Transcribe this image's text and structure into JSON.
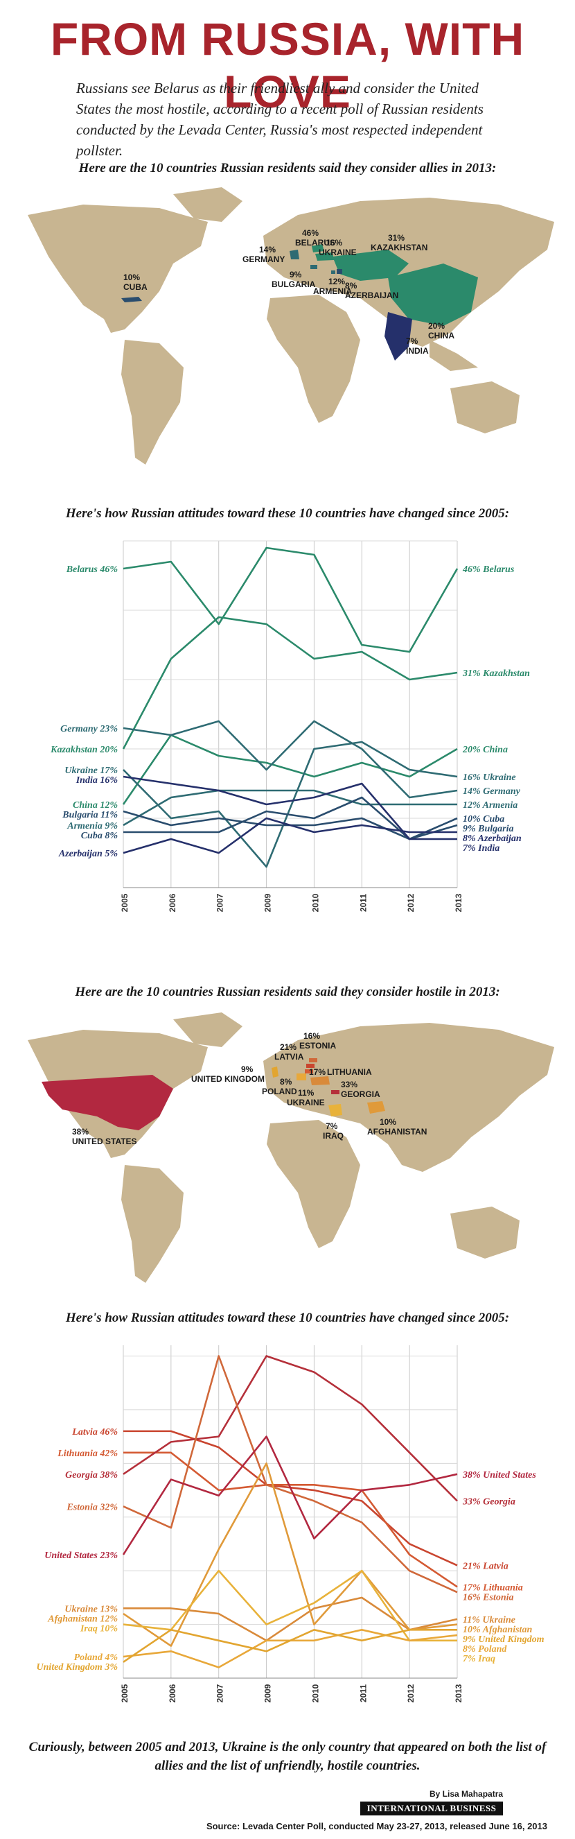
{
  "title": "FROM RUSSIA, WITH LOVE",
  "intro": "Russians see Belarus as their friendliest ally and consider the United States the most hostile, according to a recent poll of Russian residents conducted by the Levada Center, Russia's most respected independent pollster.",
  "allies_map": {
    "heading": "Here are the 10 countries Russian residents said they consider allies in 2013:",
    "labels": [
      {
        "pct": "46%",
        "name": "BELARUS"
      },
      {
        "pct": "31%",
        "name": "KAZAKHSTAN"
      },
      {
        "pct": "16%",
        "name": "UKRAINE"
      },
      {
        "pct": "14%",
        "name": "GERMANY"
      },
      {
        "pct": "9%",
        "name": "BULGARIA"
      },
      {
        "pct": "12%",
        "name": "ARMENIA"
      },
      {
        "pct": "8%",
        "name": "AZERBAIJAN"
      },
      {
        "pct": "10%",
        "name": "CUBA"
      },
      {
        "pct": "20%",
        "name": "CHINA"
      },
      {
        "pct": "7%",
        "name": "INDIA"
      }
    ]
  },
  "hostile_map": {
    "heading": "Here are the 10 countries Russian residents said they consider hostile in 2013:",
    "labels": [
      {
        "pct": "38%",
        "name": "UNITED STATES"
      },
      {
        "pct": "21%",
        "name": "LATVIA"
      },
      {
        "pct": "16%",
        "name": "ESTONIA"
      },
      {
        "pct": "17%",
        "name": "LITHUANIA"
      },
      {
        "pct": "9%",
        "name": "UNITED KINGDOM"
      },
      {
        "pct": "8%",
        "name": "POLAND"
      },
      {
        "pct": "11%",
        "name": "UKRAINE"
      },
      {
        "pct": "33%",
        "name": "GEORGIA"
      },
      {
        "pct": "7%",
        "name": "IRAQ"
      },
      {
        "pct": "10%",
        "name": "AFGHANISTAN"
      }
    ]
  },
  "chart_data": [
    {
      "type": "line",
      "title": "Here's how Russian attitudes toward these 10 countries have changed since 2005:",
      "x": [
        "2005",
        "2006",
        "2007",
        "2009",
        "2010",
        "2011",
        "2012",
        "2013"
      ],
      "ylim": [
        0,
        50
      ],
      "series": [
        {
          "name": "Belarus",
          "color": "#2b8a6b",
          "values": [
            46,
            47,
            38,
            49,
            48,
            35,
            34,
            46
          ],
          "left_label": "Belarus 46%",
          "right_label": "46% Belarus"
        },
        {
          "name": "Kazakhstan",
          "color": "#2b8a6b",
          "values": [
            20,
            33,
            39,
            38,
            33,
            34,
            30,
            31
          ],
          "left_label": "Kazakhstan 20%",
          "right_label": "31% Kazakhstan"
        },
        {
          "name": "China",
          "color": "#2b8a6b",
          "values": [
            12,
            22,
            19,
            18,
            16,
            18,
            16,
            20
          ],
          "left_label": "China 12%",
          "right_label": "20% China"
        },
        {
          "name": "Germany",
          "color": "#2e6b73",
          "values": [
            23,
            22,
            24,
            17,
            24,
            20,
            13,
            14
          ],
          "left_label": "Germany 23%",
          "right_label": "14% Germany"
        },
        {
          "name": "Ukraine",
          "color": "#2e6b73",
          "values": [
            17,
            10,
            11,
            3,
            20,
            21,
            17,
            16
          ],
          "left_label": "Ukraine 17%",
          "right_label": "16% Ukraine"
        },
        {
          "name": "Armenia",
          "color": "#2e6b73",
          "values": [
            9,
            13,
            14,
            14,
            14,
            12,
            12,
            12
          ],
          "left_label": "Armenia 9%",
          "right_label": "12% Armenia"
        },
        {
          "name": "Bulgaria",
          "color": "#2a4d6e",
          "values": [
            11,
            9,
            10,
            9,
            9,
            10,
            7,
            9
          ],
          "left_label": "Bulgaria 11%",
          "right_label": "9% Bulgaria"
        },
        {
          "name": "Cuba",
          "color": "#2a4d6e",
          "values": [
            8,
            8,
            8,
            11,
            10,
            13,
            7,
            10
          ],
          "left_label": "Cuba 8%",
          "right_label": "10% Cuba"
        },
        {
          "name": "India",
          "color": "#25306b",
          "values": [
            16,
            15,
            14,
            12,
            13,
            15,
            7,
            7
          ],
          "left_label": "India 16%",
          "right_label": "7% India"
        },
        {
          "name": "Azerbaijan",
          "color": "#25306b",
          "values": [
            5,
            7,
            5,
            10,
            8,
            9,
            8,
            8
          ],
          "left_label": "Azerbaijan 5%",
          "right_label": "8% Azerbaijan"
        }
      ]
    },
    {
      "type": "line",
      "title": "Here's how Russian attitudes toward these 10 countries have changed since 2005:",
      "x": [
        "2005",
        "2006",
        "2007",
        "2009",
        "2010",
        "2011",
        "2012",
        "2013"
      ],
      "ylim": [
        0,
        50
      ],
      "series": [
        {
          "name": "Latvia",
          "color": "#c9452f",
          "values": [
            46,
            46,
            43,
            36,
            35,
            33,
            25,
            21
          ],
          "left_label": "Latvia 46%",
          "right_label": "21% Latvia"
        },
        {
          "name": "Lithuania",
          "color": "#d45a33",
          "values": [
            42,
            42,
            35,
            36,
            36,
            35,
            23,
            17
          ],
          "left_label": "Lithuania 42%",
          "right_label": "17% Lithuania"
        },
        {
          "name": "Georgia",
          "color": "#b5303a",
          "values": [
            38,
            44,
            45,
            60,
            57,
            51,
            42,
            33
          ],
          "left_label": "Georgia 38%",
          "right_label": "33% Georgia"
        },
        {
          "name": "Estonia",
          "color": "#d0683a",
          "values": [
            32,
            28,
            60,
            36,
            33,
            29,
            20,
            16
          ],
          "left_label": "Estonia 32%",
          "right_label": "16% Estonia"
        },
        {
          "name": "United States",
          "color": "#b22840",
          "values": [
            23,
            37,
            34,
            45,
            26,
            35,
            36,
            38
          ],
          "left_label": "United States 23%",
          "right_label": "38% United States"
        },
        {
          "name": "Ukraine",
          "color": "#d98a3a",
          "values": [
            13,
            13,
            12,
            7,
            13,
            15,
            9,
            11
          ],
          "left_label": "Ukraine 13%",
          "right_label": "11% Ukraine"
        },
        {
          "name": "Afghanistan",
          "color": "#e09a3a",
          "values": [
            12,
            6,
            24,
            40,
            10,
            20,
            9,
            10
          ],
          "left_label": "Afghanistan 12%",
          "right_label": "10% Afghanistan"
        },
        {
          "name": "Iraq",
          "color": "#e8b23a",
          "values": [
            10,
            9,
            20,
            10,
            14,
            20,
            7,
            7
          ],
          "left_label": "Iraq 10%",
          "right_label": "7% Iraq"
        },
        {
          "name": "Poland",
          "color": "#e8a83a",
          "values": [
            4,
            5,
            2,
            7,
            7,
            9,
            7,
            8
          ],
          "left_label": "Poland 4%",
          "right_label": "8% Poland"
        },
        {
          "name": "United Kingdom",
          "color": "#e2a530",
          "values": [
            3,
            9,
            7,
            5,
            9,
            7,
            9,
            9
          ],
          "left_label": "United Kingdom 3%",
          "right_label": "9% United Kingdom"
        }
      ]
    }
  ],
  "footer_note": "Curiously, between 2005 and 2013, Ukraine is the only country that appeared on both the list of allies and the list of unfriendly, hostile countries.",
  "byline": "By Lisa Mahapatra",
  "publisher": "INTERNATIONAL BUSINESS TIMES",
  "source": "Source: Levada Center Poll, conducted May 23-27, 2013, released June 16, 2013",
  "colors": {
    "title": "#a8242c",
    "land": "#c8b591",
    "ally_green": "#2b8a6b",
    "ally_blue": "#25306b",
    "hostile_red": "#b22840",
    "hostile_orange": "#e09a3a"
  }
}
